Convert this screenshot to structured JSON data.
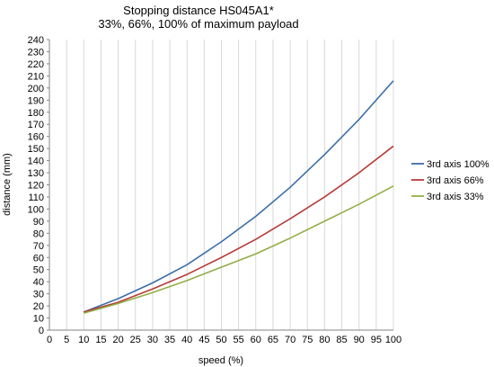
{
  "chart_data": {
    "type": "line",
    "title": "Stopping distance HS045A1*",
    "subtitle": "33%, 66%, 100% of maximum payload",
    "xlabel": "speed (%)",
    "ylabel": "distance (mm)",
    "xlim": [
      0,
      100
    ],
    "ylim": [
      0,
      240
    ],
    "x_ticks": [
      "0",
      "5",
      "10",
      "15",
      "20",
      "25",
      "30",
      "35",
      "40",
      "45",
      "50",
      "55",
      "60",
      "65",
      "70",
      "75",
      "80",
      "85",
      "90",
      "95",
      "100"
    ],
    "y_ticks": [
      "0",
      "10",
      "20",
      "30",
      "40",
      "50",
      "60",
      "70",
      "80",
      "90",
      "100",
      "110",
      "120",
      "130",
      "140",
      "150",
      "160",
      "170",
      "180",
      "190",
      "200",
      "210",
      "220",
      "230",
      "240"
    ],
    "grid": "vertical",
    "legend_position": "right",
    "x": [
      10,
      20,
      30,
      40,
      50,
      60,
      70,
      80,
      90,
      100
    ],
    "series": [
      {
        "name": "3rd axis 100%",
        "color": "#3c6ea7",
        "values": [
          15,
          26,
          39,
          54,
          73,
          94,
          118,
          145,
          174,
          206
        ]
      },
      {
        "name": "3rd axis 66%",
        "color": "#b63c3a",
        "values": [
          15,
          23,
          34,
          46,
          60,
          75,
          92,
          110,
          130,
          152
        ]
      },
      {
        "name": "3rd axis 33%",
        "color": "#93ae45",
        "values": [
          14,
          22,
          31,
          41,
          52,
          63,
          76,
          90,
          104,
          119
        ]
      }
    ]
  }
}
